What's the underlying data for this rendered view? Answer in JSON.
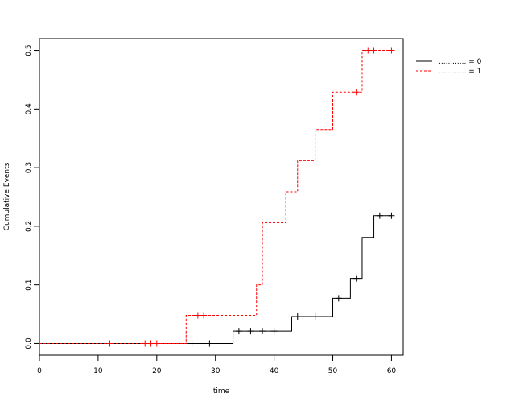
{
  "chart_data": {
    "type": "line",
    "subtype": "step",
    "xlabel": "time",
    "ylabel": "Cumulative Events",
    "xlim": [
      0,
      62
    ],
    "ylim": [
      -0.02,
      0.52
    ],
    "xticks": [
      0,
      10,
      20,
      30,
      40,
      50,
      60
    ],
    "yticks": [
      0.0,
      0.1,
      0.2,
      0.3,
      0.4,
      0.5
    ],
    "ytick_labels": [
      "0.0",
      "0.1",
      "0.2",
      "0.3",
      "0.4",
      "0.5"
    ],
    "grid": false,
    "legend_position": "top-right",
    "series": [
      {
        "name": "............ = 0",
        "color": "#000000",
        "linestyle": "solid",
        "steps": [
          [
            0,
            0.0
          ],
          [
            33,
            0.021
          ],
          [
            43,
            0.046
          ],
          [
            50,
            0.077
          ],
          [
            53,
            0.111
          ],
          [
            55,
            0.181
          ],
          [
            57,
            0.218
          ],
          [
            60,
            0.218
          ]
        ],
        "censored": [
          [
            26,
            0.0
          ],
          [
            29,
            0.0
          ],
          [
            34,
            0.021
          ],
          [
            36,
            0.021
          ],
          [
            38,
            0.021
          ],
          [
            40,
            0.021
          ],
          [
            44,
            0.046
          ],
          [
            47,
            0.046
          ],
          [
            51,
            0.077
          ],
          [
            54,
            0.111
          ],
          [
            58,
            0.218
          ],
          [
            60,
            0.218
          ]
        ]
      },
      {
        "name": "............ = 1",
        "color": "#ff0000",
        "linestyle": "dashed",
        "steps": [
          [
            0,
            0.0
          ],
          [
            25,
            0.048
          ],
          [
            37,
            0.1
          ],
          [
            38,
            0.206
          ],
          [
            42,
            0.259
          ],
          [
            44,
            0.312
          ],
          [
            47,
            0.365
          ],
          [
            50,
            0.429
          ],
          [
            55,
            0.5
          ],
          [
            60,
            0.5
          ]
        ],
        "censored": [
          [
            12,
            0.0
          ],
          [
            18,
            0.0
          ],
          [
            19,
            0.0
          ],
          [
            20,
            0.0
          ],
          [
            27,
            0.048
          ],
          [
            28,
            0.048
          ],
          [
            54,
            0.429
          ],
          [
            56,
            0.5
          ],
          [
            57,
            0.5
          ],
          [
            60,
            0.5
          ]
        ]
      }
    ]
  }
}
